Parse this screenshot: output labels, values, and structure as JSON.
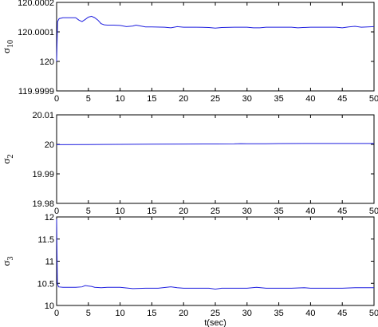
{
  "chart_data": [
    {
      "type": "line",
      "ylabel": "σ10",
      "xlabel": "",
      "xlim": [
        0,
        50
      ],
      "ylim": [
        119.9999,
        120.0002
      ],
      "xticks": [
        "0",
        "5",
        "10",
        "15",
        "20",
        "25",
        "30",
        "35",
        "40",
        "45",
        "50"
      ],
      "yticks": [
        "119.9999",
        "120",
        "120.0001",
        "120.0002"
      ],
      "yticks_values": [
        119.9999,
        120.0,
        120.0001,
        120.0002
      ],
      "line_color": "#1f1fdf",
      "series": [
        {
          "x": [
            0,
            0.15,
            0.4,
            1,
            2,
            3,
            3.5,
            4,
            4.5,
            5,
            5.5,
            6,
            6.5,
            7,
            7.5,
            8,
            9,
            10,
            11,
            12,
            12.5,
            13,
            14,
            15,
            17,
            18,
            19,
            20,
            22,
            24,
            25,
            26,
            28,
            30,
            31,
            32,
            33,
            35,
            37,
            38,
            40,
            42,
            44,
            45,
            46,
            47,
            48,
            50
          ],
          "y": [
            120.0,
            120.000135,
            120.000145,
            120.000148,
            120.000148,
            120.000148,
            120.00014,
            120.000135,
            120.000142,
            120.00015,
            120.000153,
            120.000148,
            120.00014,
            120.000128,
            120.000124,
            120.000123,
            120.000123,
            120.000122,
            120.000118,
            120.00012,
            120.000123,
            120.000121,
            120.000117,
            120.000117,
            120.000116,
            120.000114,
            120.000118,
            120.000116,
            120.000116,
            120.000115,
            120.000113,
            120.000115,
            120.000116,
            120.000116,
            120.000114,
            120.000114,
            120.000116,
            120.000116,
            120.000116,
            120.000114,
            120.000116,
            120.000116,
            120.000116,
            120.000114,
            120.000117,
            120.000119,
            120.000116,
            120.000118
          ]
        }
      ]
    },
    {
      "type": "line",
      "ylabel": "σ2",
      "xlabel": "",
      "xlim": [
        0,
        50
      ],
      "ylim": [
        19.98,
        20.01
      ],
      "xticks": [
        "0",
        "5",
        "10",
        "15",
        "20",
        "25",
        "30",
        "35",
        "40",
        "45",
        "50"
      ],
      "yticks": [
        "19.98",
        "19.99",
        "20",
        "20.01"
      ],
      "yticks_values": [
        19.98,
        19.99,
        20.0,
        20.01
      ],
      "line_color": "#1f1fdf",
      "series": [
        {
          "x": [
            0,
            5,
            10,
            15,
            20,
            25,
            28,
            29,
            30,
            33,
            35,
            40,
            45,
            50
          ],
          "y": [
            19.9999,
            19.99995,
            20.0,
            20.00005,
            20.0001,
            20.00015,
            20.00018,
            20.00025,
            20.0002,
            20.00022,
            20.00028,
            20.0003,
            20.0003,
            20.00032
          ]
        }
      ]
    },
    {
      "type": "line",
      "ylabel": "σ3",
      "xlabel": "t(sec)",
      "xlim": [
        0,
        50
      ],
      "ylim": [
        10,
        12
      ],
      "xticks": [
        "0",
        "5",
        "10",
        "15",
        "20",
        "25",
        "30",
        "35",
        "40",
        "45",
        "50"
      ],
      "yticks": [
        "10",
        "10.5",
        "11",
        "11.5",
        "12"
      ],
      "yticks_values": [
        10,
        10.5,
        11,
        11.5,
        12
      ],
      "line_color": "#1f1fdf",
      "series": [
        {
          "x": [
            0,
            0.12,
            0.3,
            1,
            2,
            3,
            4,
            4.5,
            5,
            5.5,
            6,
            7,
            8,
            10,
            12,
            14,
            16,
            18,
            19,
            20,
            22,
            24,
            25,
            26,
            28,
            30,
            31.5,
            33,
            35,
            37,
            39,
            40,
            42,
            45,
            47,
            50
          ],
          "y": [
            11.95,
            10.5,
            10.42,
            10.41,
            10.41,
            10.41,
            10.42,
            10.45,
            10.44,
            10.43,
            10.41,
            10.4,
            10.41,
            10.41,
            10.38,
            10.39,
            10.39,
            10.42,
            10.4,
            10.39,
            10.39,
            10.39,
            10.37,
            10.39,
            10.39,
            10.39,
            10.41,
            10.39,
            10.39,
            10.39,
            10.4,
            10.39,
            10.39,
            10.39,
            10.4,
            10.4
          ]
        }
      ]
    }
  ]
}
